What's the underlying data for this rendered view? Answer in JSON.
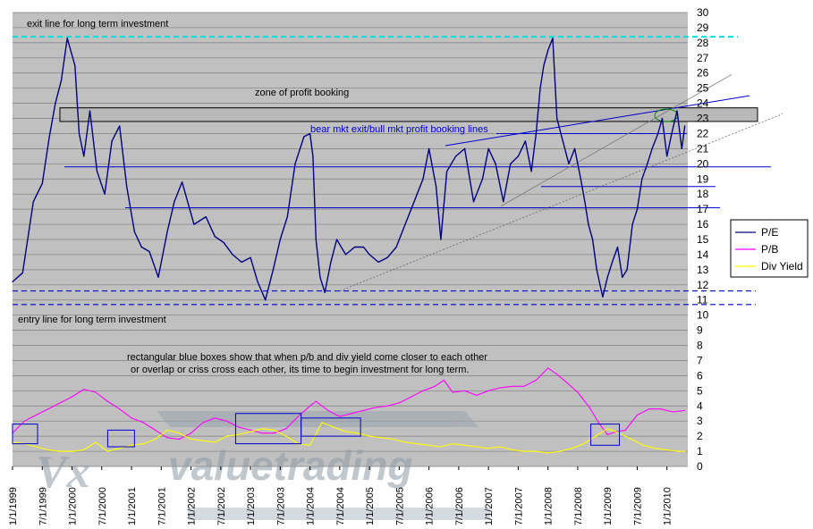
{
  "chart_data": {
    "type": "line",
    "title": "",
    "xlabel": "",
    "ylabel": "",
    "ylim": [
      0,
      30
    ],
    "yticks": [
      0,
      1,
      2,
      3,
      4,
      5,
      6,
      7,
      8,
      9,
      10,
      11,
      12,
      13,
      14,
      15,
      16,
      17,
      18,
      19,
      20,
      21,
      22,
      23,
      24,
      25,
      26,
      27,
      28,
      29,
      30
    ],
    "grid": "horizontal",
    "legend": "right",
    "categories": [
      "1/1/1999",
      "7/1/1999",
      "1/1/2000",
      "7/1/2000",
      "1/1/2001",
      "7/1/2001",
      "1/1/2002",
      "7/1/2002",
      "1/1/2003",
      "7/1/2003",
      "1/1/2004",
      "7/1/2004",
      "1/1/2005",
      "7/1/2005",
      "1/1/2006",
      "7/1/2006",
      "1/1/2007",
      "7/1/2007",
      "1/1/2008",
      "7/1/2008",
      "1/1/2009",
      "7/1/2009",
      "1/1/2010"
    ],
    "series": [
      {
        "name": "P/E",
        "color": "#000080",
        "x": [
          1999.0,
          1999.17,
          1999.35,
          1999.5,
          1999.62,
          1999.72,
          1999.82,
          1999.92,
          2000.05,
          2000.12,
          2000.2,
          2000.3,
          2000.42,
          2000.55,
          2000.67,
          2000.8,
          2000.92,
          2001.05,
          2001.17,
          2001.3,
          2001.45,
          2001.6,
          2001.72,
          2001.85,
          2002.05,
          2002.25,
          2002.4,
          2002.55,
          2002.7,
          2002.85,
          2003.0,
          2003.12,
          2003.25,
          2003.38,
          2003.5,
          2003.62,
          2003.75,
          2003.9,
          2004.0,
          2004.05,
          2004.1,
          2004.17,
          2004.25,
          2004.35,
          2004.45,
          2004.6,
          2004.75,
          2004.9,
          2005.0,
          2005.15,
          2005.3,
          2005.45,
          2005.6,
          2005.75,
          2005.9,
          2006.0,
          2006.12,
          2006.2,
          2006.3,
          2006.45,
          2006.6,
          2006.75,
          2006.9,
          2007.0,
          2007.12,
          2007.25,
          2007.37,
          2007.5,
          2007.62,
          2007.72,
          2007.8,
          2007.87,
          2007.93,
          2008.0,
          2008.08,
          2008.15,
          2008.25,
          2008.35,
          2008.45,
          2008.55,
          2008.62,
          2008.68,
          2008.75,
          2008.82,
          2008.92,
          2009.0,
          2009.08,
          2009.17,
          2009.25,
          2009.33,
          2009.42,
          2009.5,
          2009.58,
          2009.67,
          2009.75,
          2009.85,
          2009.92,
          2010.0,
          2010.08,
          2010.17,
          2010.25,
          2010.3
        ],
        "values": [
          12.2,
          12.8,
          17.5,
          18.7,
          21.8,
          24.0,
          25.5,
          28.3,
          26.5,
          22.0,
          20.5,
          23.5,
          19.5,
          18.0,
          21.5,
          22.5,
          18.5,
          15.5,
          14.5,
          14.2,
          12.5,
          15.5,
          17.5,
          18.8,
          16.0,
          16.5,
          15.2,
          14.8,
          14.0,
          13.5,
          13.8,
          12.2,
          11.0,
          13.0,
          15.0,
          16.5,
          20.0,
          21.8,
          22.0,
          20.5,
          15.0,
          12.5,
          11.5,
          13.5,
          15.0,
          14.0,
          14.5,
          14.5,
          14.0,
          13.5,
          13.8,
          14.5,
          16.0,
          17.5,
          19.0,
          21.0,
          18.5,
          15.0,
          19.5,
          20.5,
          21.0,
          17.5,
          19.0,
          21.0,
          20.0,
          17.5,
          20.0,
          20.5,
          21.5,
          19.5,
          22.0,
          25.0,
          26.5,
          27.5,
          28.3,
          23.0,
          21.5,
          20.0,
          21.0,
          19.0,
          17.5,
          16.0,
          15.0,
          13.0,
          11.2,
          12.5,
          13.5,
          14.5,
          12.5,
          13.0,
          16.0,
          17.0,
          19.0,
          20.0,
          21.0,
          22.0,
          23.0,
          20.5,
          22.0,
          23.5,
          21.0,
          22.5
        ]
      },
      {
        "name": "P/B",
        "color": "#ff00ff",
        "x": [
          1999.0,
          1999.2,
          1999.4,
          1999.6,
          1999.8,
          2000.0,
          2000.2,
          2000.4,
          2000.6,
          2000.8,
          2001.0,
          2001.2,
          2001.4,
          2001.6,
          2001.8,
          2002.0,
          2002.2,
          2002.4,
          2002.6,
          2002.8,
          2003.0,
          2003.2,
          2003.4,
          2003.6,
          2003.8,
          2004.0,
          2004.1,
          2004.3,
          2004.5,
          2004.7,
          2004.9,
          2005.1,
          2005.3,
          2005.5,
          2005.7,
          2005.9,
          2006.1,
          2006.25,
          2006.4,
          2006.6,
          2006.8,
          2007.0,
          2007.2,
          2007.4,
          2007.6,
          2007.8,
          2008.0,
          2008.15,
          2008.3,
          2008.5,
          2008.7,
          2008.85,
          2009.0,
          2009.15,
          2009.3,
          2009.5,
          2009.7,
          2009.9,
          2010.1,
          2010.3
        ],
        "values": [
          2.2,
          3.0,
          3.4,
          3.8,
          4.2,
          4.6,
          5.1,
          4.9,
          4.3,
          3.8,
          3.2,
          2.9,
          2.4,
          1.9,
          1.8,
          2.2,
          2.9,
          3.2,
          3.0,
          2.6,
          2.4,
          2.2,
          2.2,
          2.5,
          3.3,
          4.0,
          4.3,
          3.7,
          3.3,
          3.5,
          3.7,
          3.9,
          4.0,
          4.2,
          4.6,
          5.0,
          5.3,
          5.7,
          4.9,
          5.0,
          4.7,
          5.0,
          5.2,
          5.3,
          5.3,
          5.7,
          6.5,
          6.1,
          5.6,
          4.9,
          3.9,
          2.9,
          2.1,
          2.3,
          2.4,
          3.4,
          3.8,
          3.8,
          3.6,
          3.7
        ]
      },
      {
        "name": "Div Yield",
        "color": "#ffff00",
        "x": [
          1999.0,
          1999.2,
          1999.4,
          1999.6,
          1999.8,
          2000.0,
          2000.2,
          2000.4,
          2000.6,
          2000.8,
          2001.0,
          2001.2,
          2001.4,
          2001.6,
          2001.8,
          2002.0,
          2002.2,
          2002.4,
          2002.6,
          2002.8,
          2003.0,
          2003.2,
          2003.4,
          2003.6,
          2003.8,
          2004.0,
          2004.2,
          2004.4,
          2004.6,
          2004.8,
          2005.0,
          2005.2,
          2005.4,
          2005.6,
          2005.8,
          2006.0,
          2006.2,
          2006.4,
          2006.6,
          2006.8,
          2007.0,
          2007.2,
          2007.4,
          2007.6,
          2007.8,
          2008.0,
          2008.2,
          2008.4,
          2008.6,
          2008.8,
          2009.0,
          2009.2,
          2009.4,
          2009.6,
          2009.8,
          2010.0,
          2010.2,
          2010.3
        ],
        "values": [
          1.6,
          1.5,
          1.3,
          1.1,
          1.0,
          1.0,
          1.1,
          1.6,
          1.0,
          1.2,
          1.4,
          1.5,
          1.8,
          2.4,
          2.2,
          1.8,
          1.7,
          1.6,
          2.0,
          2.1,
          2.3,
          2.5,
          2.4,
          2.0,
          1.5,
          1.4,
          2.9,
          2.6,
          2.3,
          2.2,
          2.0,
          1.9,
          1.8,
          1.6,
          1.5,
          1.4,
          1.3,
          1.5,
          1.4,
          1.3,
          1.2,
          1.3,
          1.1,
          1.0,
          1.0,
          0.9,
          1.0,
          1.2,
          1.5,
          2.0,
          2.5,
          2.2,
          1.8,
          1.4,
          1.2,
          1.1,
          1.0,
          1.0
        ]
      }
    ],
    "reference_lines": [
      {
        "y": 28.4,
        "color": "#00e0e0",
        "style": "dashed"
      },
      {
        "y": 11.6,
        "color": "#0000cc",
        "style": "dashed"
      },
      {
        "y": 10.7,
        "color": "#0000cc",
        "style": "dashed"
      }
    ],
    "annotations": {
      "exit_line": "exit line for long term investment",
      "zone": "zone of profit booking",
      "bear_mkt": "bear mkt exit/bull mkt profit booking lines",
      "entry_line": "entry line for long term investment",
      "boxes_note_1": "rectangular blue boxes show that when p/b and div yield come closer to each other",
      "boxes_note_2": "or overlap or criss cross each other, its time to begin investment for long term."
    },
    "watermark": "valuetrading"
  }
}
